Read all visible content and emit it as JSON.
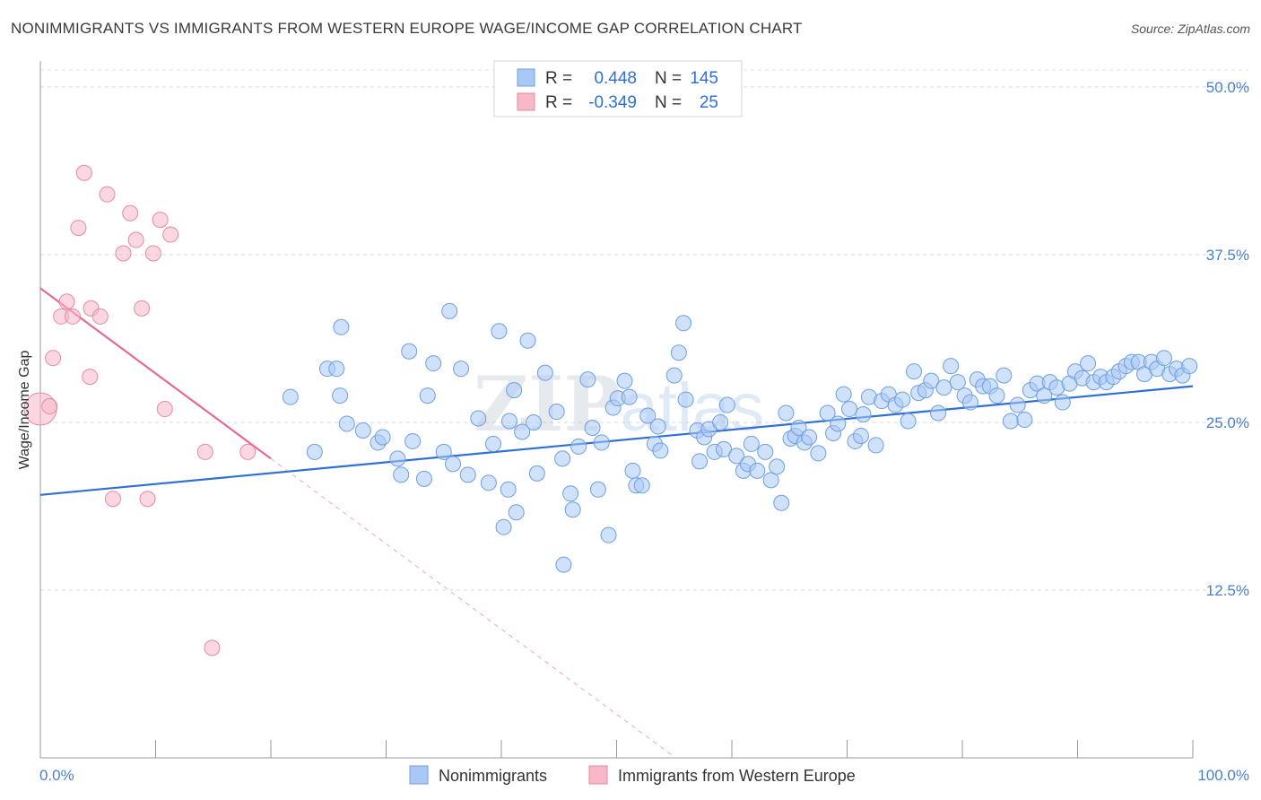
{
  "title": "NONIMMIGRANTS VS IMMIGRANTS FROM WESTERN EUROPE WAGE/INCOME GAP CORRELATION CHART",
  "source": "Source: ZipAtlas.com",
  "chart_data": {
    "type": "scatter",
    "ylabel": "Wage/Income Gap",
    "x_tick_labels": [
      "0.0%",
      "100.0%"
    ],
    "y_tick_labels": [
      "12.5%",
      "25.0%",
      "37.5%",
      "50.0%"
    ],
    "y_ticks": [
      12.5,
      25.0,
      37.5,
      50.0
    ],
    "xlim": [
      0,
      100
    ],
    "ylim": [
      0,
      50
    ],
    "grid": true,
    "legend": {
      "placement": "top-center",
      "rows": [
        {
          "r_label": "R =",
          "r": "0.448",
          "n_label": "N =",
          "n": "145",
          "color": "#a9c8f5"
        },
        {
          "r_label": "R =",
          "r": "-0.349",
          "n_label": "N =",
          "n": "25",
          "color": "#f7b8c8"
        }
      ]
    },
    "series": [
      {
        "name": "Nonimmigrants",
        "color": "#a9c8f5",
        "stroke": "#6e9fe0",
        "trend": {
          "x": [
            0,
            100
          ],
          "y": [
            19.6,
            27.7
          ],
          "color": "#2f6fd6"
        },
        "points": [
          [
            21.7,
            26.9
          ],
          [
            23.8,
            22.8
          ],
          [
            24.9,
            29.0
          ],
          [
            25.7,
            29.0
          ],
          [
            26.0,
            27.0
          ],
          [
            26.6,
            24.9
          ],
          [
            26.1,
            32.1
          ],
          [
            28.0,
            24.4
          ],
          [
            29.3,
            23.5
          ],
          [
            29.7,
            23.9
          ],
          [
            31.0,
            22.3
          ],
          [
            31.3,
            21.1
          ],
          [
            32.0,
            30.3
          ],
          [
            32.3,
            23.6
          ],
          [
            33.3,
            20.8
          ],
          [
            33.6,
            27.0
          ],
          [
            34.1,
            29.4
          ],
          [
            35.0,
            22.8
          ],
          [
            35.5,
            33.3
          ],
          [
            35.8,
            21.9
          ],
          [
            36.5,
            29.0
          ],
          [
            37.1,
            21.1
          ],
          [
            38.0,
            25.3
          ],
          [
            38.9,
            20.5
          ],
          [
            39.3,
            23.4
          ],
          [
            39.8,
            31.8
          ],
          [
            40.2,
            17.2
          ],
          [
            40.6,
            20.0
          ],
          [
            40.7,
            25.1
          ],
          [
            41.1,
            27.4
          ],
          [
            41.3,
            18.3
          ],
          [
            41.8,
            24.3
          ],
          [
            42.3,
            31.1
          ],
          [
            42.8,
            25.0
          ],
          [
            43.1,
            21.2
          ],
          [
            43.8,
            28.7
          ],
          [
            44.8,
            25.8
          ],
          [
            45.3,
            22.3
          ],
          [
            45.4,
            14.4
          ],
          [
            46.0,
            19.7
          ],
          [
            46.2,
            18.5
          ],
          [
            46.7,
            23.2
          ],
          [
            47.5,
            28.2
          ],
          [
            47.9,
            24.6
          ],
          [
            48.4,
            20.0
          ],
          [
            48.7,
            23.5
          ],
          [
            49.3,
            16.6
          ],
          [
            49.7,
            26.1
          ],
          [
            50.1,
            26.8
          ],
          [
            50.7,
            28.1
          ],
          [
            51.1,
            26.9
          ],
          [
            51.4,
            21.4
          ],
          [
            51.7,
            20.3
          ],
          [
            52.2,
            20.3
          ],
          [
            52.7,
            25.5
          ],
          [
            53.3,
            23.4
          ],
          [
            53.6,
            24.7
          ],
          [
            53.8,
            22.9
          ],
          [
            55.0,
            28.5
          ],
          [
            55.4,
            30.2
          ],
          [
            55.8,
            32.4
          ],
          [
            56.0,
            26.7
          ],
          [
            57.0,
            24.4
          ],
          [
            57.2,
            22.1
          ],
          [
            57.6,
            23.9
          ],
          [
            58.0,
            24.5
          ],
          [
            58.5,
            22.8
          ],
          [
            59.0,
            25.0
          ],
          [
            59.3,
            23.0
          ],
          [
            59.6,
            26.3
          ],
          [
            60.4,
            22.5
          ],
          [
            61.0,
            21.4
          ],
          [
            61.4,
            21.9
          ],
          [
            61.7,
            23.4
          ],
          [
            62.2,
            21.4
          ],
          [
            62.9,
            22.8
          ],
          [
            63.4,
            20.7
          ],
          [
            63.9,
            21.7
          ],
          [
            64.3,
            19.0
          ],
          [
            64.7,
            25.7
          ],
          [
            65.1,
            23.8
          ],
          [
            65.5,
            24.0
          ],
          [
            65.8,
            24.6
          ],
          [
            66.3,
            23.5
          ],
          [
            66.7,
            23.9
          ],
          [
            67.5,
            22.7
          ],
          [
            68.3,
            25.7
          ],
          [
            68.8,
            24.2
          ],
          [
            69.2,
            24.9
          ],
          [
            69.7,
            27.1
          ],
          [
            70.2,
            26.0
          ],
          [
            70.7,
            23.6
          ],
          [
            71.2,
            24.0
          ],
          [
            71.4,
            25.6
          ],
          [
            71.9,
            26.9
          ],
          [
            72.5,
            23.3
          ],
          [
            73.0,
            26.6
          ],
          [
            73.6,
            27.1
          ],
          [
            74.2,
            26.3
          ],
          [
            74.8,
            26.7
          ],
          [
            75.3,
            25.1
          ],
          [
            75.8,
            28.8
          ],
          [
            76.2,
            27.2
          ],
          [
            76.8,
            27.4
          ],
          [
            77.3,
            28.1
          ],
          [
            77.9,
            25.7
          ],
          [
            78.4,
            27.6
          ],
          [
            79.0,
            29.2
          ],
          [
            79.6,
            28.0
          ],
          [
            80.2,
            27.0
          ],
          [
            80.7,
            26.5
          ],
          [
            81.3,
            28.2
          ],
          [
            81.8,
            27.7
          ],
          [
            82.4,
            27.7
          ],
          [
            83.0,
            27.0
          ],
          [
            83.6,
            28.5
          ],
          [
            84.2,
            25.1
          ],
          [
            84.8,
            26.3
          ],
          [
            85.4,
            25.2
          ],
          [
            85.9,
            27.4
          ],
          [
            86.5,
            27.9
          ],
          [
            87.1,
            27.0
          ],
          [
            87.6,
            28.0
          ],
          [
            88.2,
            27.6
          ],
          [
            88.7,
            26.5
          ],
          [
            89.3,
            27.9
          ],
          [
            89.8,
            28.8
          ],
          [
            90.4,
            28.3
          ],
          [
            90.9,
            29.4
          ],
          [
            91.4,
            28.0
          ],
          [
            92.0,
            28.4
          ],
          [
            92.5,
            28.0
          ],
          [
            93.1,
            28.4
          ],
          [
            93.6,
            28.8
          ],
          [
            94.2,
            29.2
          ],
          [
            94.7,
            29.5
          ],
          [
            95.3,
            29.5
          ],
          [
            95.8,
            28.6
          ],
          [
            96.4,
            29.5
          ],
          [
            96.9,
            29.0
          ],
          [
            97.5,
            29.8
          ],
          [
            98.0,
            28.6
          ],
          [
            98.6,
            29.0
          ],
          [
            99.1,
            28.5
          ],
          [
            99.7,
            29.2
          ]
        ]
      },
      {
        "name": "Immigrants from Western Europe",
        "color": "#f7b8c8",
        "stroke": "#e48aa3",
        "trend": {
          "x": [
            0,
            20
          ],
          "y": [
            35.0,
            22.3
          ],
          "color": "#e76a93",
          "extend_to_x": 55,
          "extend_dashed": true
        },
        "points": [
          [
            0.0,
            26.0
          ],
          [
            0.8,
            26.2
          ],
          [
            1.1,
            29.8
          ],
          [
            1.8,
            32.9
          ],
          [
            2.3,
            34.0
          ],
          [
            2.8,
            32.9
          ],
          [
            3.3,
            39.5
          ],
          [
            3.8,
            43.6
          ],
          [
            4.3,
            28.4
          ],
          [
            4.4,
            33.5
          ],
          [
            5.2,
            32.9
          ],
          [
            5.8,
            42.0
          ],
          [
            6.3,
            19.3
          ],
          [
            7.2,
            37.6
          ],
          [
            7.8,
            40.6
          ],
          [
            8.3,
            38.6
          ],
          [
            8.8,
            33.5
          ],
          [
            9.3,
            19.3
          ],
          [
            9.8,
            37.6
          ],
          [
            10.4,
            40.1
          ],
          [
            10.8,
            26.0
          ],
          [
            11.3,
            39.0
          ],
          [
            14.3,
            22.8
          ],
          [
            14.9,
            8.2
          ],
          [
            18.0,
            22.8
          ]
        ]
      }
    ]
  },
  "bottom_legend": [
    {
      "label": "Nonimmigrants",
      "color": "#a9c8f5"
    },
    {
      "label": "Immigrants from Western Europe",
      "color": "#f7b8c8"
    }
  ],
  "watermark": "ZIPatlas"
}
